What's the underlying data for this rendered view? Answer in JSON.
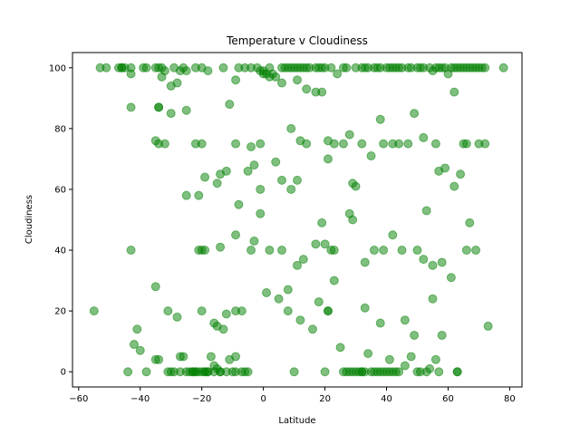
{
  "chart_data": {
    "type": "scatter",
    "title": "Temperature v Cloudiness",
    "xlabel": "Latitude",
    "ylabel": "Cloudiness",
    "xlim": [
      -62,
      84
    ],
    "ylim": [
      -5,
      105
    ],
    "xticks": [
      -60,
      -40,
      -20,
      0,
      20,
      40,
      60,
      80
    ],
    "yticks": [
      0,
      20,
      40,
      60,
      80,
      100
    ],
    "grid": false,
    "legend": "none",
    "marker_color": "#008000",
    "marker_opacity": 0.5,
    "series": [
      {
        "x": [
          -53,
          -51,
          -47,
          -46,
          -45,
          -43,
          -39,
          -38,
          -35,
          -34,
          -33,
          -32,
          -29,
          -27,
          -26,
          -22,
          -20,
          -18,
          -13,
          -8,
          -6,
          -4,
          -2,
          -1,
          0,
          2,
          4,
          6,
          7,
          8,
          9,
          10,
          11,
          12,
          13,
          14,
          15,
          17,
          18,
          19,
          20,
          22,
          24,
          26,
          27,
          30,
          32,
          33,
          34,
          36,
          37,
          38,
          40,
          41,
          42,
          43,
          44,
          45,
          47,
          48,
          50,
          51,
          52,
          54,
          55,
          56,
          57,
          58,
          59,
          60,
          61,
          62,
          63,
          64,
          65,
          66,
          67,
          68,
          69,
          70,
          71,
          72,
          78,
          -34,
          -30,
          -25,
          -22,
          -11,
          -9,
          2,
          6,
          11,
          14,
          17,
          19,
          28,
          38,
          47,
          62,
          65,
          70,
          -43,
          -35,
          -32,
          -30,
          -28,
          -25,
          -20,
          -15,
          -9,
          -4,
          -1,
          1,
          4,
          9,
          14,
          21,
          26,
          32,
          44,
          52,
          56,
          66,
          72,
          -34,
          -34,
          -33,
          -25,
          -21,
          -19,
          -14,
          -12,
          -8,
          -5,
          -3,
          -1,
          0,
          3,
          6,
          9,
          11,
          12,
          21,
          23,
          29,
          30,
          35,
          39,
          42,
          49,
          53,
          57,
          59,
          62,
          64,
          67,
          -21,
          -20,
          -19,
          -14,
          -9,
          -4,
          -3,
          -1,
          2,
          6,
          8,
          11,
          13,
          17,
          19,
          20,
          22,
          23,
          28,
          29,
          33,
          36,
          39,
          42,
          45,
          50,
          52,
          55,
          58,
          66,
          69,
          -43,
          -41,
          -35,
          -31,
          -28,
          -26,
          -23,
          -20,
          -16,
          -15,
          -13,
          -12,
          -9,
          -7,
          1,
          5,
          8,
          12,
          16,
          18,
          21,
          23,
          33,
          38,
          46,
          49,
          55,
          58,
          61,
          73,
          -55,
          -44,
          -35,
          -30,
          -27,
          -22,
          -19,
          -18,
          -16,
          -14,
          -11,
          -9,
          -6,
          10,
          21,
          26,
          32,
          41,
          56,
          63,
          -46,
          -43,
          -42,
          -40,
          -38,
          -34,
          -31,
          -29,
          -27,
          -25,
          -24,
          -23,
          -22,
          -21,
          -20,
          -19,
          -18,
          -17,
          -16,
          -15,
          -14,
          -12,
          -10,
          -9,
          -7,
          -5,
          20,
          25,
          27,
          28,
          29,
          30,
          31,
          32,
          33,
          34,
          35,
          36,
          37,
          38,
          39,
          40,
          41,
          42,
          43,
          44,
          46,
          48,
          50,
          51,
          53,
          54,
          57,
          63
        ],
        "y": [
          100,
          100,
          100,
          100,
          100,
          98,
          100,
          100,
          100,
          100,
          100,
          99,
          100,
          99,
          100,
          100,
          100,
          99,
          100,
          100,
          100,
          100,
          100,
          99,
          98,
          100,
          97,
          100,
          100,
          100,
          100,
          100,
          100,
          100,
          100,
          100,
          100,
          100,
          100,
          100,
          100,
          100,
          98,
          100,
          100,
          100,
          100,
          100,
          100,
          100,
          100,
          100,
          100,
          100,
          100,
          100,
          100,
          100,
          100,
          100,
          100,
          100,
          100,
          100,
          99,
          100,
          100,
          100,
          100,
          98,
          100,
          100,
          100,
          100,
          100,
          100,
          100,
          100,
          100,
          100,
          100,
          100,
          100,
          87,
          85,
          86,
          75,
          88,
          96,
          97,
          95,
          96,
          93,
          92,
          92,
          78,
          83,
          75,
          92,
          75,
          75,
          87,
          76,
          75,
          94,
          95,
          99,
          75,
          62,
          75,
          74,
          75,
          98,
          69,
          80,
          75,
          76,
          75,
          75,
          75,
          77,
          75,
          75,
          75,
          75,
          87,
          97,
          58,
          58,
          64,
          65,
          66,
          55,
          66,
          68,
          60,
          99,
          98,
          63,
          60,
          63,
          76,
          70,
          75,
          62,
          61,
          71,
          75,
          75,
          85,
          53,
          66,
          67,
          61,
          65,
          49,
          40,
          40,
          40,
          41,
          45,
          40,
          43,
          52,
          40,
          40,
          27,
          35,
          37,
          42,
          49,
          42,
          40,
          40,
          52,
          50,
          36,
          40,
          40,
          45,
          40,
          40,
          37,
          35,
          36,
          40,
          40,
          40,
          14,
          28,
          20,
          18,
          5,
          0,
          20,
          16,
          15,
          14,
          19,
          20,
          20,
          26,
          24,
          20,
          17,
          14,
          23,
          20,
          30,
          21,
          16,
          17,
          12,
          24,
          12,
          31,
          15,
          20,
          0,
          4,
          0,
          5,
          0,
          0,
          0,
          0,
          0,
          4,
          5,
          0,
          0,
          20,
          0,
          0,
          0,
          4,
          0,
          100,
          100,
          9,
          7,
          0,
          4,
          0,
          0,
          0,
          0,
          0,
          0,
          0,
          0,
          0,
          0,
          0,
          5,
          2,
          1,
          0,
          0,
          0,
          0,
          0,
          0,
          0,
          8,
          0,
          0,
          0,
          0,
          0,
          0,
          0,
          6,
          0,
          0,
          0,
          0,
          0,
          0,
          4,
          0,
          0,
          0,
          2,
          5,
          0,
          0,
          0,
          1,
          0,
          0
        ]
      }
    ]
  }
}
